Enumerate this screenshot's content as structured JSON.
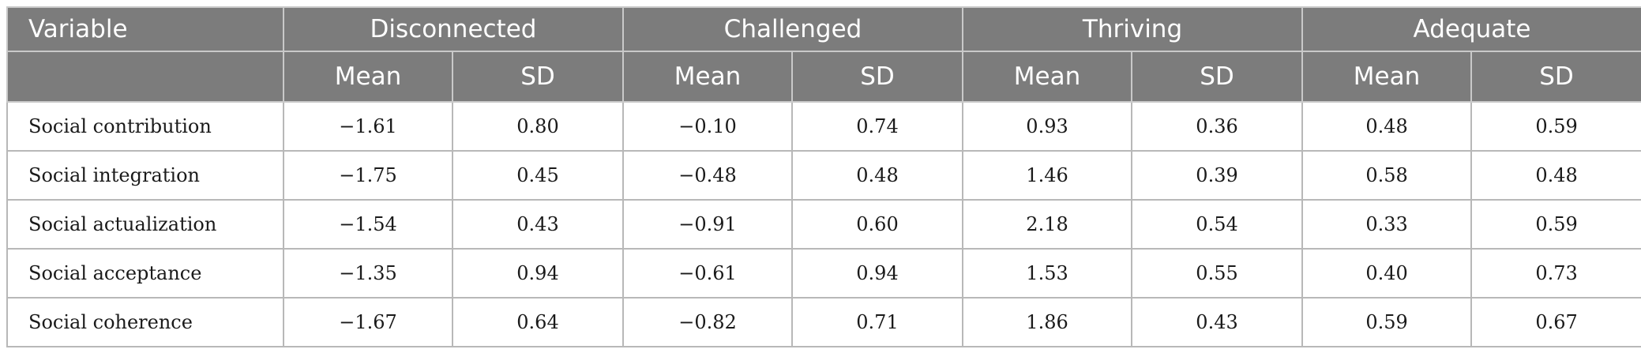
{
  "header": {
    "variable": "Variable",
    "groups": [
      "Disconnected",
      "Challenged",
      "Thriving",
      "Adequate"
    ],
    "mean": "Mean",
    "sd": "SD"
  },
  "rows": [
    {
      "variable": "Social contribution",
      "values": [
        "−1.61",
        "0.80",
        "−0.10",
        "0.74",
        "0.93",
        "0.36",
        "0.48",
        "0.59"
      ]
    },
    {
      "variable": "Social integration",
      "values": [
        "−1.75",
        "0.45",
        "−0.48",
        "0.48",
        "1.46",
        "0.39",
        "0.58",
        "0.48"
      ]
    },
    {
      "variable": "Social actualization",
      "values": [
        "−1.54",
        "0.43",
        "−0.91",
        "0.60",
        "2.18",
        "0.54",
        "0.33",
        "0.59"
      ]
    },
    {
      "variable": "Social acceptance",
      "values": [
        "−1.35",
        "0.94",
        "−0.61",
        "0.94",
        "1.53",
        "0.55",
        "0.40",
        "0.73"
      ]
    },
    {
      "variable": "Social coherence",
      "values": [
        "−1.67",
        "0.64",
        "−0.82",
        "0.71",
        "1.86",
        "0.43",
        "0.59",
        "0.67"
      ]
    }
  ],
  "colors": {
    "header_bg": "#7c7c7c",
    "header_text": "#ffffff",
    "border": "#b8b8b8"
  }
}
